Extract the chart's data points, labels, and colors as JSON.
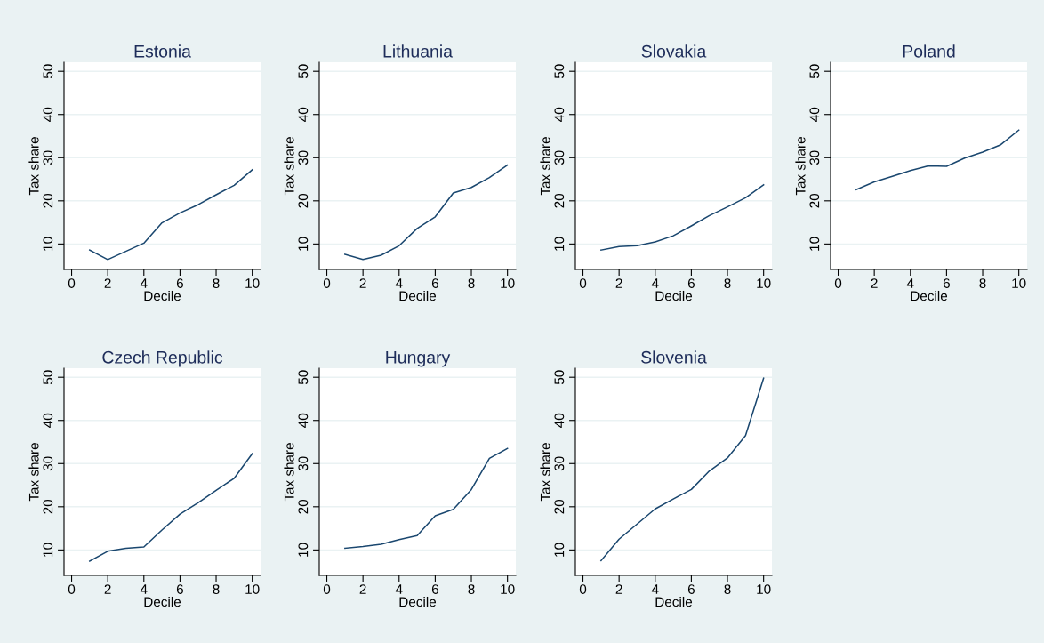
{
  "chart_data": [
    {
      "type": "line",
      "title": "Estonia",
      "xlabel": "Decile",
      "ylabel": "Tax share",
      "x": [
        1,
        2,
        3,
        4,
        5,
        6,
        7,
        8,
        9,
        10
      ],
      "values": [
        8.6,
        6.4,
        8.3,
        10.2,
        14.9,
        17.2,
        19.1,
        21.4,
        23.6,
        27.2
      ],
      "color": "#1a476f",
      "xlim": [
        -0.42,
        10.46
      ],
      "ylim": [
        4.1,
        52.1
      ],
      "xticks": [
        0,
        2,
        4,
        6,
        8,
        10
      ],
      "yticks": [
        10,
        20,
        30,
        40,
        50
      ],
      "grid": "y"
    },
    {
      "type": "line",
      "title": "Lithuania",
      "xlabel": "Decile",
      "ylabel": "Tax share",
      "x": [
        1,
        2,
        3,
        4,
        5,
        6,
        7,
        8,
        9,
        10
      ],
      "values": [
        7.6,
        6.4,
        7.4,
        9.6,
        13.6,
        16.3,
        21.8,
        23.1,
        25.4,
        28.3
      ],
      "color": "#1a476f",
      "xlim": [
        -0.42,
        10.46
      ],
      "ylim": [
        4.1,
        52.1
      ],
      "xticks": [
        0,
        2,
        4,
        6,
        8,
        10
      ],
      "yticks": [
        10,
        20,
        30,
        40,
        50
      ],
      "grid": "y"
    },
    {
      "type": "line",
      "title": "Slovakia",
      "xlabel": "Decile",
      "ylabel": "Tax share",
      "x": [
        1,
        2,
        3,
        4,
        5,
        6,
        7,
        8,
        9,
        10
      ],
      "values": [
        8.6,
        9.4,
        9.6,
        10.5,
        11.9,
        14.2,
        16.6,
        18.6,
        20.7,
        23.7
      ],
      "color": "#1a476f",
      "xlim": [
        -0.42,
        10.46
      ],
      "ylim": [
        4.1,
        52.1
      ],
      "xticks": [
        0,
        2,
        4,
        6,
        8,
        10
      ],
      "yticks": [
        10,
        20,
        30,
        40,
        50
      ],
      "grid": "y"
    },
    {
      "type": "line",
      "title": "Poland",
      "xlabel": "Decile",
      "ylabel": "Tax share",
      "x": [
        1,
        2,
        3,
        4,
        5,
        6,
        7,
        8,
        9,
        10
      ],
      "values": [
        22.6,
        24.4,
        25.7,
        27.0,
        28.1,
        28.0,
        29.9,
        31.3,
        33.0,
        36.4
      ],
      "color": "#1a476f",
      "xlim": [
        -0.42,
        10.46
      ],
      "ylim": [
        4.1,
        52.1
      ],
      "xticks": [
        0,
        2,
        4,
        6,
        8,
        10
      ],
      "yticks": [
        10,
        20,
        30,
        40,
        50
      ],
      "grid": "y"
    },
    {
      "type": "line",
      "title": "Czech Republic",
      "xlabel": "Decile",
      "ylabel": "Tax share",
      "x": [
        1,
        2,
        3,
        4,
        5,
        6,
        7,
        8,
        9,
        10
      ],
      "values": [
        7.4,
        9.7,
        10.4,
        10.7,
        14.6,
        18.3,
        20.9,
        23.8,
        26.6,
        32.3
      ],
      "color": "#1a476f",
      "xlim": [
        -0.42,
        10.46
      ],
      "ylim": [
        4.1,
        52.1
      ],
      "xticks": [
        0,
        2,
        4,
        6,
        8,
        10
      ],
      "yticks": [
        10,
        20,
        30,
        40,
        50
      ],
      "grid": "y"
    },
    {
      "type": "line",
      "title": "Hungary",
      "xlabel": "Decile",
      "ylabel": "Tax share",
      "x": [
        1,
        2,
        3,
        4,
        5,
        6,
        7,
        8,
        9,
        10
      ],
      "values": [
        10.4,
        10.8,
        11.3,
        12.4,
        13.3,
        17.9,
        19.4,
        24.0,
        31.2,
        33.5
      ],
      "color": "#1a476f",
      "xlim": [
        -0.42,
        10.46
      ],
      "ylim": [
        4.1,
        52.1
      ],
      "xticks": [
        0,
        2,
        4,
        6,
        8,
        10
      ],
      "yticks": [
        10,
        20,
        30,
        40,
        50
      ],
      "grid": "y"
    },
    {
      "type": "line",
      "title": "Slovenia",
      "xlabel": "Decile",
      "ylabel": "Tax share",
      "x": [
        1,
        2,
        3,
        4,
        5,
        6,
        7,
        8,
        9,
        10
      ],
      "values": [
        7.5,
        12.5,
        16.0,
        19.5,
        21.8,
        24.0,
        28.3,
        31.3,
        36.5,
        49.8
      ],
      "color": "#1a476f",
      "xlim": [
        -0.42,
        10.46
      ],
      "ylim": [
        4.1,
        52.1
      ],
      "xticks": [
        0,
        2,
        4,
        6,
        8,
        10
      ],
      "yticks": [
        10,
        20,
        30,
        40,
        50
      ],
      "grid": "y"
    }
  ]
}
